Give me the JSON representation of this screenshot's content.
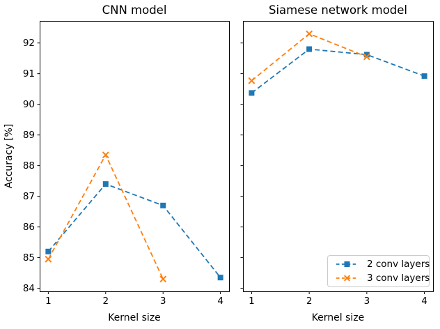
{
  "figure": {
    "background": "#ffffff",
    "text_color": "#000000",
    "spine_color": "#000000",
    "legend_border_color": "#cccccc"
  },
  "legend": {
    "position": "lower right of right subplot"
  },
  "chart_data": [
    {
      "type": "line",
      "title": "CNN model",
      "xlabel": "Kernel size",
      "ylabel": "Accuracy [%]",
      "x_ticks": [
        1,
        2,
        3,
        4
      ],
      "y_ticks": [
        84,
        85,
        86,
        87,
        88,
        89,
        90,
        91,
        92
      ],
      "xlim": [
        0.85,
        4.15
      ],
      "ylim": [
        83.9,
        92.72
      ],
      "grid": false,
      "y_tick_labels_visible": true,
      "series": [
        {
          "name": "2 conv layers",
          "color": "#1f77b4",
          "marker": "square",
          "linestyle": "dashed",
          "x": [
            1,
            2,
            3,
            4
          ],
          "y": [
            85.2,
            87.4,
            86.7,
            84.35
          ]
        },
        {
          "name": "3 conv layers",
          "color": "#ff7f0e",
          "marker": "x",
          "linestyle": "dashed",
          "x": [
            1,
            2,
            3
          ],
          "y": [
            84.95,
            88.35,
            84.3
          ]
        }
      ]
    },
    {
      "type": "line",
      "title": "Siamese network model",
      "xlabel": "Kernel size",
      "ylabel": "",
      "x_ticks": [
        1,
        2,
        3,
        4
      ],
      "y_ticks": [
        84,
        85,
        86,
        87,
        88,
        89,
        90,
        91,
        92
      ],
      "xlim": [
        0.85,
        4.15
      ],
      "ylim": [
        83.9,
        92.72
      ],
      "grid": false,
      "y_tick_labels_visible": false,
      "legend_position": "lower right",
      "series": [
        {
          "name": "2 conv layers",
          "color": "#1f77b4",
          "marker": "square",
          "linestyle": "dashed",
          "x": [
            1,
            2,
            3,
            4
          ],
          "y": [
            90.37,
            91.8,
            91.62,
            90.92
          ]
        },
        {
          "name": "3 conv layers",
          "color": "#ff7f0e",
          "marker": "x",
          "linestyle": "dashed",
          "x": [
            1,
            2,
            3
          ],
          "y": [
            90.77,
            92.3,
            91.55
          ]
        }
      ]
    }
  ]
}
